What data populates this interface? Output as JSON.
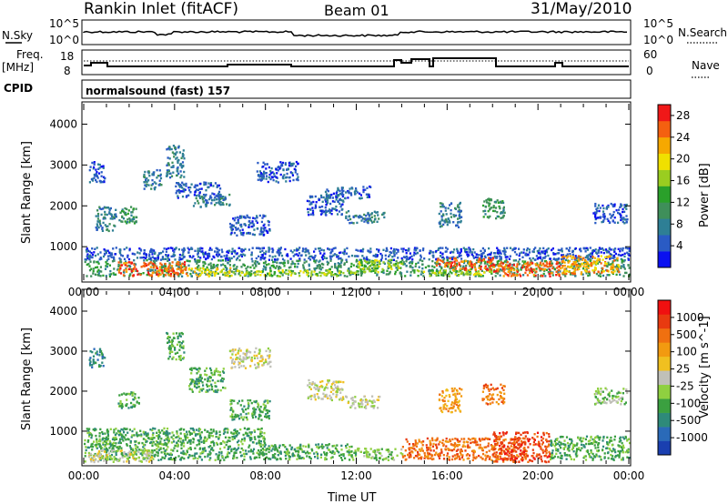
{
  "header": {
    "title": "Rankin Inlet (fitACF)",
    "beam": "Beam 01",
    "date": "31/May/2010"
  },
  "strip_labels": {
    "nsky": "N.Sky",
    "nsearch": "N.Search",
    "sky_top": "10^5",
    "sky_bot": "10^0",
    "search_top": "10^5",
    "search_bot": "10^0",
    "freq": "Freq.",
    "freq_unit": "[MHz]",
    "freq_top": "18",
    "freq_bot": "8",
    "nave": "Nave",
    "nave_top": "60",
    "nave_bot": "0",
    "cpid": "CPID",
    "cpid_value": "normalsound (fast) 157"
  },
  "chart_data": [
    {
      "type": "heatmap",
      "panel": "power",
      "ylabel": "Slant Range [km]",
      "xlabel": "",
      "x_ticks": [
        "00:00",
        "04:00",
        "08:00",
        "12:00",
        "16:00",
        "20:00",
        "00:00"
      ],
      "y_ticks": [
        1000,
        2000,
        3000,
        4000
      ],
      "ylim": [
        180,
        4500
      ],
      "xlim_hours": [
        0,
        24
      ],
      "colorbar": {
        "label": "Power [dB]",
        "ticks": [
          "4",
          "8",
          "12",
          "16",
          "20",
          "24",
          "28"
        ],
        "range": [
          0,
          30
        ],
        "colors": [
          "#0a10f0",
          "#2a5bc4",
          "#2e7f95",
          "#3f8f5a",
          "#2aa02a",
          "#9acd20",
          "#f0e000",
          "#f6a800",
          "#f46010",
          "#f01818"
        ]
      },
      "regions": [
        {
          "t0": 0.2,
          "t1": 0.9,
          "r0": 2600,
          "r1": 3100,
          "level": 1
        },
        {
          "t0": 0.5,
          "t1": 1.4,
          "r0": 1400,
          "r1": 2000,
          "level": 2
        },
        {
          "t0": 1.4,
          "t1": 2.3,
          "r0": 1600,
          "r1": 2000,
          "level": 3
        },
        {
          "t0": 2.6,
          "t1": 3.4,
          "r0": 2400,
          "r1": 2900,
          "level": 2
        },
        {
          "t0": 3.6,
          "t1": 4.4,
          "r0": 2700,
          "r1": 3500,
          "level": 2
        },
        {
          "t0": 4.0,
          "t1": 6.0,
          "r0": 2200,
          "r1": 2600,
          "level": 1
        },
        {
          "t0": 4.8,
          "t1": 6.4,
          "r0": 2000,
          "r1": 2300,
          "level": 2
        },
        {
          "t0": 6.4,
          "t1": 8.2,
          "r0": 1300,
          "r1": 1800,
          "level": 1
        },
        {
          "t0": 7.6,
          "t1": 9.4,
          "r0": 2600,
          "r1": 3100,
          "level": 1
        },
        {
          "t0": 9.8,
          "t1": 11.4,
          "r0": 1800,
          "r1": 2300,
          "level": 1
        },
        {
          "t0": 10.6,
          "t1": 12.6,
          "r0": 2200,
          "r1": 2500,
          "level": 1
        },
        {
          "t0": 11.5,
          "t1": 13.2,
          "r0": 1600,
          "r1": 1900,
          "level": 2
        },
        {
          "t0": 15.6,
          "t1": 16.6,
          "r0": 1500,
          "r1": 2100,
          "level": 2
        },
        {
          "t0": 17.5,
          "t1": 18.5,
          "r0": 1700,
          "r1": 2200,
          "level": 3
        },
        {
          "t0": 22.4,
          "t1": 23.9,
          "r0": 1600,
          "r1": 2100,
          "level": 1
        },
        {
          "t0": 0.0,
          "t1": 24.0,
          "r0": 700,
          "r1": 1000,
          "level": 1
        },
        {
          "t0": 0.0,
          "t1": 24.0,
          "r0": 300,
          "r1": 700,
          "level": 3
        },
        {
          "t0": 1.5,
          "t1": 4.5,
          "r0": 300,
          "r1": 650,
          "level": 8
        },
        {
          "t0": 4.5,
          "t1": 6.5,
          "r0": 300,
          "r1": 500,
          "level": 6
        },
        {
          "t0": 6.5,
          "t1": 12.0,
          "r0": 300,
          "r1": 450,
          "level": 5
        },
        {
          "t0": 12.0,
          "t1": 14.0,
          "r0": 400,
          "r1": 700,
          "level": 5
        },
        {
          "t0": 14.5,
          "t1": 18.0,
          "r0": 300,
          "r1": 450,
          "level": 5
        },
        {
          "t0": 15.5,
          "t1": 18.0,
          "r0": 450,
          "r1": 750,
          "level": 8
        },
        {
          "t0": 18.0,
          "t1": 21.0,
          "r0": 300,
          "r1": 650,
          "level": 8
        },
        {
          "t0": 21.0,
          "t1": 23.6,
          "r0": 350,
          "r1": 800,
          "level": 7
        }
      ]
    },
    {
      "type": "heatmap",
      "panel": "velocity",
      "ylabel": "Slant Range [km]",
      "xlabel": "Time UT",
      "x_ticks": [
        "00:00",
        "04:00",
        "08:00",
        "12:00",
        "16:00",
        "20:00",
        "00:00"
      ],
      "y_ticks": [
        1000,
        2000,
        3000,
        4000
      ],
      "ylim": [
        180,
        4500
      ],
      "xlim_hours": [
        0,
        24
      ],
      "colorbar": {
        "label": "Velocity [m s^-1]",
        "ticks": [
          "1000",
          "500",
          "100",
          "25",
          "-25",
          "-100",
          "-500",
          "-1000"
        ],
        "colors": [
          "#1a3fb0",
          "#2a6ab8",
          "#2e8a7a",
          "#3ba040",
          "#8fd040",
          "#c0c0b8",
          "#f0c020",
          "#f29a10",
          "#f07010",
          "#e83a10",
          "#f01010"
        ]
      },
      "regions": [
        {
          "t0": 0.2,
          "t1": 0.9,
          "r0": 2600,
          "r1": 3100,
          "level": 2
        },
        {
          "t0": 1.5,
          "t1": 2.4,
          "r0": 1600,
          "r1": 2000,
          "level": 3
        },
        {
          "t0": 3.6,
          "t1": 4.4,
          "r0": 2800,
          "r1": 3500,
          "level": 3
        },
        {
          "t0": 4.6,
          "t1": 6.2,
          "r0": 2000,
          "r1": 2600,
          "level": 3
        },
        {
          "t0": 6.4,
          "t1": 8.2,
          "r0": 2600,
          "r1": 3100,
          "level": 5
        },
        {
          "t0": 6.4,
          "t1": 8.2,
          "r0": 1300,
          "r1": 1800,
          "level": 3
        },
        {
          "t0": 9.8,
          "t1": 11.4,
          "r0": 1800,
          "r1": 2300,
          "level": 5
        },
        {
          "t0": 11.5,
          "t1": 13.0,
          "r0": 1600,
          "r1": 1900,
          "level": 5
        },
        {
          "t0": 15.6,
          "t1": 16.6,
          "r0": 1500,
          "r1": 2100,
          "level": 7
        },
        {
          "t0": 17.5,
          "t1": 18.5,
          "r0": 1700,
          "r1": 2200,
          "level": 8
        },
        {
          "t0": 22.4,
          "t1": 23.9,
          "r0": 1700,
          "r1": 2100,
          "level": 4
        },
        {
          "t0": 0.0,
          "t1": 8.0,
          "r0": 300,
          "r1": 1100,
          "level": 3
        },
        {
          "t0": 0.0,
          "t1": 3.0,
          "r0": 250,
          "r1": 550,
          "level": 5
        },
        {
          "t0": 8.0,
          "t1": 12.0,
          "r0": 300,
          "r1": 700,
          "level": 3
        },
        {
          "t0": 12.0,
          "t1": 14.0,
          "r0": 300,
          "r1": 600,
          "level": 4
        },
        {
          "t0": 14.0,
          "t1": 19.5,
          "r0": 300,
          "r1": 850,
          "level": 8
        },
        {
          "t0": 18.0,
          "t1": 20.5,
          "r0": 250,
          "r1": 1000,
          "level": 9
        },
        {
          "t0": 20.5,
          "t1": 24.0,
          "r0": 300,
          "r1": 900,
          "level": 3
        }
      ]
    }
  ]
}
